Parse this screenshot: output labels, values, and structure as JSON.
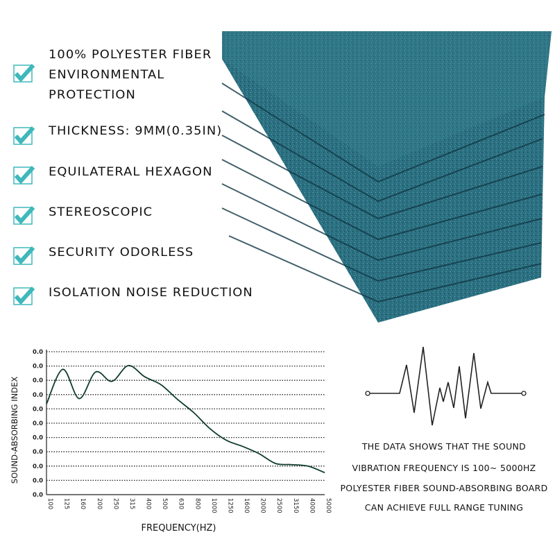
{
  "features": [
    {
      "lines": [
        "100% POLYESTER FIBER",
        "ENVIRONMENTAL",
        "PROTECTION"
      ],
      "icon": "checkbox-check-icon"
    },
    {
      "lines": [
        "THICKNESS: 9MM(0.35IN)"
      ],
      "icon": "checkbox-check-icon"
    },
    {
      "lines": [
        "EQUILATERAL HEXAGON"
      ],
      "icon": "checkbox-check-icon"
    },
    {
      "lines": [
        "STEREOSCOPIC"
      ],
      "icon": "checkbox-check-icon"
    },
    {
      "lines": [
        "SECURITY ODORLESS"
      ],
      "icon": "checkbox-check-icon"
    },
    {
      "lines": [
        "ISOLATION NOISE REDUCTION"
      ],
      "icon": "checkbox-check-icon"
    }
  ],
  "colors": {
    "accent": "#3fb8bb",
    "fabric": "#2a6e80",
    "curve": "#0f3d2c"
  },
  "caption": {
    "lines": [
      "THE DATA SHOWS THAT THE SOUND",
      "VIBRATION FREQUENCY IS 100~ 5000HZ",
      "POLYESTER FIBER SOUND-ABSORBING BOARD",
      "CAN ACHIEVE FULL RANGE TUNING"
    ]
  },
  "chart_data": {
    "type": "line",
    "xlabel": "FREQUENCY(HZ)",
    "ylabel": "SOUND-ABSORBING INDEX",
    "categories": [
      "100",
      "125",
      "160",
      "200",
      "250",
      "315",
      "400",
      "500",
      "630",
      "800",
      "1000",
      "1250",
      "1600",
      "2000",
      "2500",
      "3150",
      "4000",
      "5000"
    ],
    "y_tick_labels": [
      "0.0",
      "0.0",
      "0.0",
      "0.0",
      "0.0",
      "0.0",
      "0.0",
      "0.0",
      "0.0",
      "0.0",
      "0.0"
    ],
    "ylim": [
      0,
      10
    ],
    "grid": "horizontal dotted",
    "values": [
      6.34,
      8.77,
      6.72,
      8.58,
      7.93,
      9.03,
      8.25,
      7.69,
      6.67,
      5.74,
      4.61,
      3.8,
      3.37,
      2.86,
      2.18,
      2.1,
      1.99,
      1.54
    ]
  }
}
